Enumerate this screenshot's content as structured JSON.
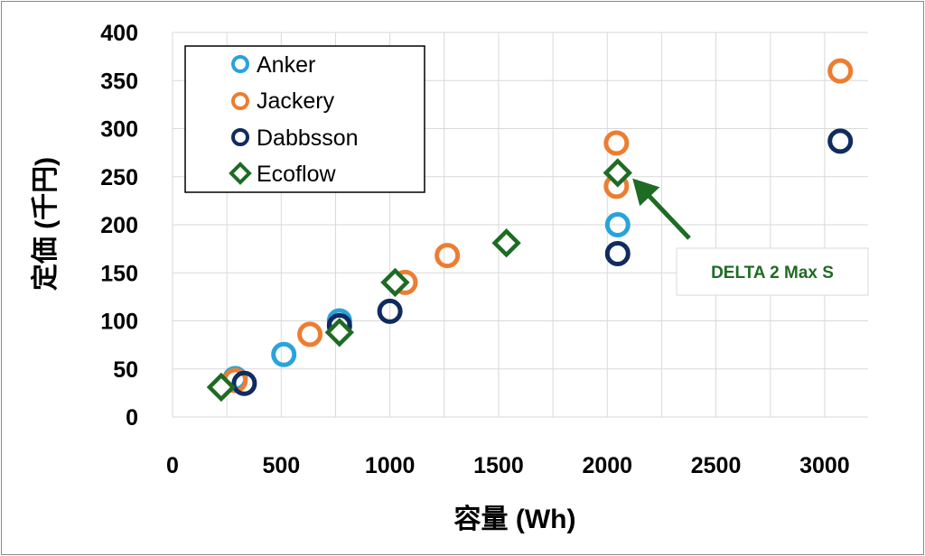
{
  "chart_data": {
    "type": "scatter",
    "xlabel": "容量 (Wh)",
    "ylabel": "定価 (千円)",
    "xlim": [
      0,
      3200
    ],
    "ylim": [
      0,
      400
    ],
    "xticks": [
      0,
      500,
      1000,
      1500,
      2000,
      2500,
      3000
    ],
    "yticks": [
      0,
      50,
      100,
      150,
      200,
      250,
      300,
      350,
      400
    ],
    "grid": true,
    "legend_position": "top-left",
    "series": [
      {
        "name": "Anker",
        "color": "#29a3dc",
        "marker": "circle",
        "points": [
          [
            288,
            40
          ],
          [
            512,
            65
          ],
          [
            768,
            100
          ],
          [
            2048,
            200
          ]
        ]
      },
      {
        "name": "Jackery",
        "color": "#ed7d31",
        "marker": "circle",
        "points": [
          [
            288,
            38
          ],
          [
            632,
            86
          ],
          [
            1070,
            140
          ],
          [
            1264,
            168
          ],
          [
            2042,
            285
          ],
          [
            2042,
            240
          ],
          [
            3072,
            360
          ]
        ]
      },
      {
        "name": "Dabbsson",
        "color": "#102b5f",
        "marker": "circle",
        "points": [
          [
            330,
            35
          ],
          [
            768,
            95
          ],
          [
            1000,
            110
          ],
          [
            2048,
            170
          ],
          [
            3072,
            287
          ]
        ]
      },
      {
        "name": "Ecoflow",
        "color": "#1e6b24",
        "marker": "diamond",
        "points": [
          [
            224,
            31
          ],
          [
            768,
            88
          ],
          [
            1024,
            140
          ],
          [
            1536,
            181
          ],
          [
            2048,
            254
          ]
        ]
      }
    ],
    "annotation": {
      "text": "DELTA 2 Max S",
      "color": "#1e6b24",
      "target": [
        2048,
        254
      ]
    }
  }
}
